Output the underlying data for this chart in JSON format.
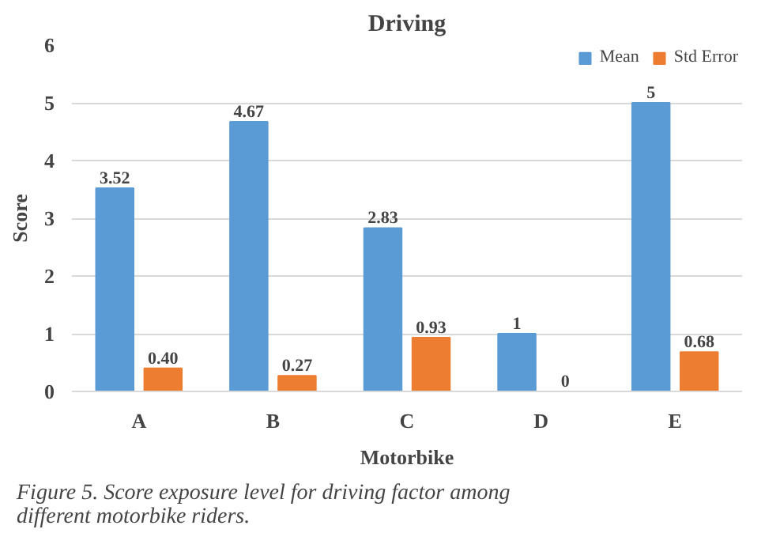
{
  "chart_data": {
    "type": "bar",
    "title": "Driving",
    "xlabel": "Motorbike",
    "ylabel": "Score",
    "categories": [
      "A",
      "B",
      "C",
      "D",
      "E"
    ],
    "series": [
      {
        "name": "Mean",
        "color": "#5b9bd5",
        "values": [
          3.52,
          4.67,
          2.83,
          1,
          5
        ],
        "value_labels": [
          "3.52",
          "4.67",
          "2.83",
          "1",
          "5"
        ]
      },
      {
        "name": "Std Error",
        "color": "#ed7d31",
        "values": [
          0.4,
          0.27,
          0.93,
          0,
          0.68
        ],
        "value_labels": [
          "0.40",
          "0.27",
          "0.93",
          "0",
          "0.68"
        ]
      }
    ],
    "ylim": [
      0,
      6
    ],
    "yticks": [
      0,
      1,
      2,
      3,
      4,
      5,
      6
    ],
    "grid": "y",
    "legend": "top right",
    "annotations": [
      "Figure 5. Score exposure level for driving factor among different motorbike riders."
    ]
  }
}
